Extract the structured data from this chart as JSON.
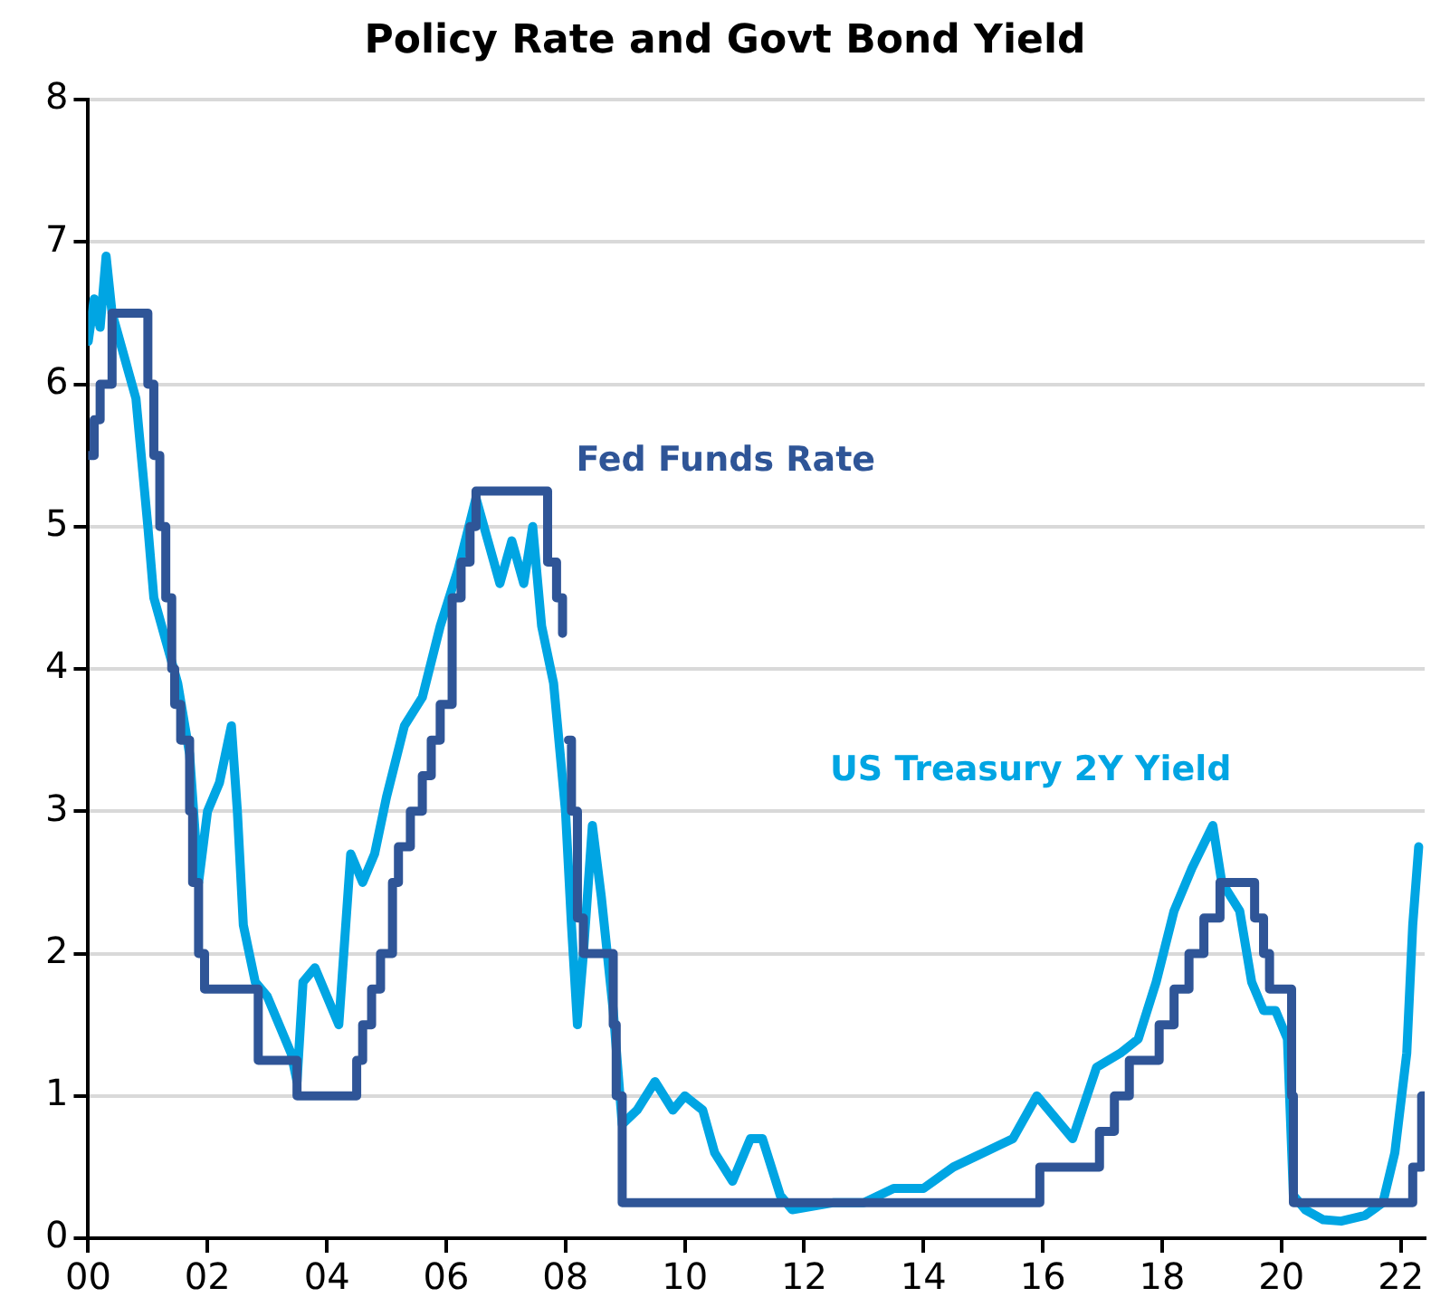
{
  "chart_data": {
    "type": "line",
    "title": "Policy Rate and Govt Bond Yield",
    "xlim": [
      2000,
      2022.4
    ],
    "xticks": [
      {
        "value": 2000,
        "label": "00"
      },
      {
        "value": 2002,
        "label": "02"
      },
      {
        "value": 2004,
        "label": "04"
      },
      {
        "value": 2006,
        "label": "06"
      },
      {
        "value": 2008,
        "label": "08"
      },
      {
        "value": 2010,
        "label": "10"
      },
      {
        "value": 2012,
        "label": "12"
      },
      {
        "value": 2014,
        "label": "14"
      },
      {
        "value": 2016,
        "label": "16"
      },
      {
        "value": 2018,
        "label": "18"
      },
      {
        "value": 2020,
        "label": "20"
      },
      {
        "value": 2022,
        "label": "22"
      }
    ],
    "ylim": [
      0,
      8
    ],
    "yticks": [
      0,
      1,
      2,
      3,
      4,
      5,
      6,
      7,
      8
    ],
    "grid": "y",
    "legend": false,
    "marker": "none",
    "series": [
      {
        "name": "Fed Funds Rate",
        "type": "step",
        "color": "#2f5597",
        "x": [
          2000,
          2000.1,
          2000.2,
          2000.4,
          2001,
          2001.1,
          2001.2,
          2001.3,
          2001.4,
          2001.45,
          2001.55,
          2001.7,
          2001.75,
          2001.85,
          2001.95,
          2002.85,
          2003.5,
          2004.5,
          2004.6,
          2004.75,
          2004.9,
          2005.1,
          2005.2,
          2005.4,
          2005.6,
          2005.75,
          2005.9,
          2006.1,
          2006.25,
          2006.4,
          2006.5,
          2007.7,
          2007.85,
          2007.95,
          2008.0,
          2008.05,
          2008.1,
          2008.2,
          2008.3,
          2008.8,
          2008.85,
          2008.95,
          2015.95,
          2016.95,
          2017.2,
          2017.45,
          2017.95,
          2018.2,
          2018.45,
          2018.7,
          2018.97,
          2019.55,
          2019.7,
          2019.8,
          2020.17,
          2020.2,
          2022.2,
          2022.35,
          2022.4
        ],
        "values": [
          5.5,
          5.75,
          6,
          6.5,
          6,
          5.5,
          5,
          4.5,
          4,
          3.75,
          3.5,
          3,
          2.5,
          2,
          1.75,
          1.25,
          1,
          1.25,
          1.5,
          1.75,
          2,
          2.5,
          2.75,
          3,
          3.25,
          3.5,
          3.75,
          4.5,
          4.75,
          5,
          5.25,
          4.75,
          4.5,
          4.25,
          null,
          3.5,
          3,
          2.25,
          2,
          1.5,
          1,
          0.25,
          0.5,
          0.75,
          1,
          1.25,
          1.5,
          1.75,
          2,
          2.25,
          2.5,
          2.25,
          2,
          1.75,
          1,
          0.25,
          0.5,
          1,
          1
        ]
      },
      {
        "name": "US Treasury 2Y Yield",
        "color": "#00a5e3",
        "x": [
          2000,
          2000.1,
          2000.2,
          2000.3,
          2000.4,
          2000.6,
          2000.8,
          2001,
          2001.1,
          2001.3,
          2001.5,
          2001.7,
          2001.85,
          2002,
          2002.2,
          2002.4,
          2002.5,
          2002.6,
          2002.8,
          2003,
          2003.2,
          2003.4,
          2003.5,
          2003.6,
          2003.8,
          2004,
          2004.2,
          2004.4,
          2004.6,
          2004.8,
          2005,
          2005.3,
          2005.6,
          2005.9,
          2006.2,
          2006.5,
          2006.7,
          2006.9,
          2007.1,
          2007.3,
          2007.45,
          2007.6,
          2007.8,
          2008,
          2008.1,
          2008.2,
          2008.3,
          2008.45,
          2008.6,
          2008.8,
          2008.95,
          2009.2,
          2009.5,
          2009.8,
          2010,
          2010.3,
          2010.5,
          2010.8,
          2011.1,
          2011.3,
          2011.6,
          2011.8,
          2012.5,
          2013,
          2013.5,
          2014,
          2014.5,
          2015,
          2015.5,
          2015.9,
          2016.3,
          2016.5,
          2016.9,
          2017.3,
          2017.6,
          2017.9,
          2018.2,
          2018.5,
          2018.85,
          2019,
          2019.3,
          2019.5,
          2019.7,
          2019.9,
          2020.1,
          2020.2,
          2020.4,
          2020.7,
          2021,
          2021.4,
          2021.7,
          2021.9,
          2022.1,
          2022.2,
          2022.3
        ],
        "values": [
          6.3,
          6.6,
          6.4,
          6.9,
          6.5,
          6.2,
          5.9,
          5,
          4.5,
          4.2,
          3.9,
          3.4,
          2.5,
          3,
          3.2,
          3.6,
          3,
          2.2,
          1.8,
          1.7,
          1.5,
          1.3,
          1.1,
          1.8,
          1.9,
          1.7,
          1.5,
          2.7,
          2.5,
          2.7,
          3.1,
          3.6,
          3.8,
          4.3,
          4.7,
          5.2,
          4.9,
          4.6,
          4.9,
          4.6,
          5,
          4.3,
          3.9,
          3,
          2.2,
          1.5,
          2,
          2.9,
          2.4,
          1.6,
          0.8,
          0.9,
          1.1,
          0.9,
          1,
          0.9,
          0.6,
          0.4,
          0.7,
          0.7,
          0.3,
          0.2,
          0.25,
          0.25,
          0.35,
          0.35,
          0.5,
          0.6,
          0.7,
          1,
          0.8,
          0.7,
          1.2,
          1.3,
          1.4,
          1.8,
          2.3,
          2.6,
          2.9,
          2.5,
          2.3,
          1.8,
          1.6,
          1.6,
          1.4,
          0.3,
          0.2,
          0.13,
          0.12,
          0.16,
          0.25,
          0.6,
          1.3,
          2.2,
          2.75
        ]
      }
    ]
  }
}
